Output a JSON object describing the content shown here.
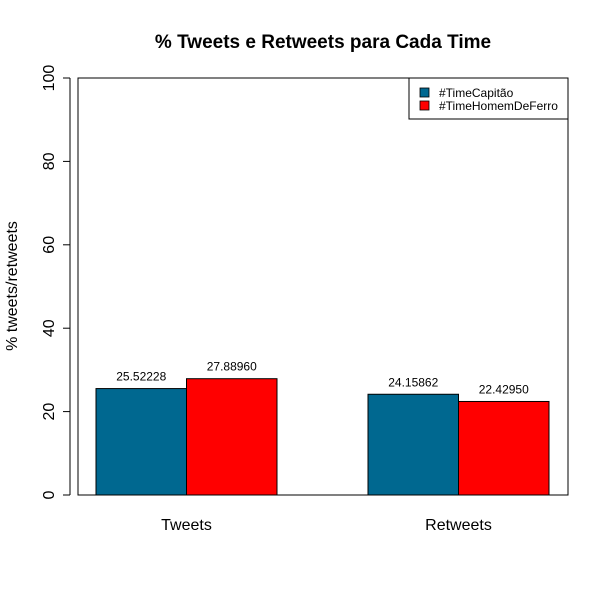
{
  "chart_data": {
    "type": "bar",
    "title": "% Tweets e Retweets para Cada Time",
    "xlabel": "",
    "ylabel": "% tweets/retweets",
    "categories": [
      "Tweets",
      "Retweets"
    ],
    "series": [
      {
        "name": "#TimeCapitão",
        "color": "#006890",
        "values": [
          25.52228,
          24.15862
        ],
        "labels": [
          "25.52228",
          "24.15862"
        ]
      },
      {
        "name": "#TimeHomemDeFerro",
        "color": "#ff0000",
        "values": [
          27.8896,
          22.4295
        ],
        "labels": [
          "27.88960",
          "22.42950"
        ]
      }
    ],
    "ylim": [
      0,
      100
    ],
    "yticks": [
      0,
      20,
      40,
      60,
      80,
      100
    ],
    "ytick_labels": [
      "0",
      "20",
      "40",
      "60",
      "80",
      "100"
    ],
    "grid": false,
    "legend_position": "top-right"
  }
}
